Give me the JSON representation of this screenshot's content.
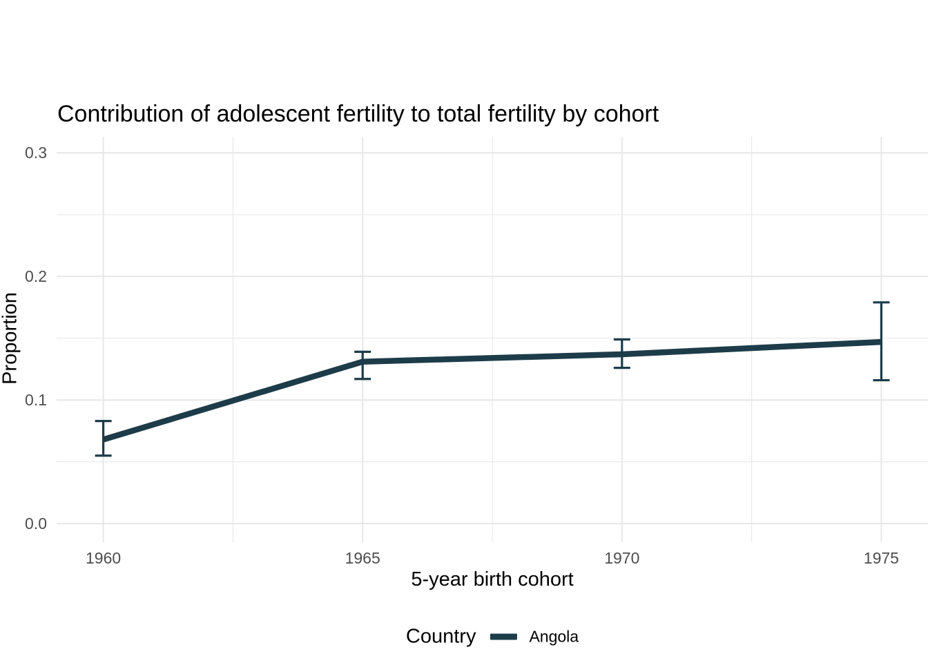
{
  "legend": {
    "title": "Country",
    "items": [
      {
        "label": "Angola",
        "color": "#1d3c49"
      }
    ]
  },
  "chart_data": {
    "type": "line",
    "title": "Contribution of adolescent fertility to total fertility by cohort",
    "xlabel": "5-year birth cohort",
    "ylabel": "Proportion",
    "x": [
      1960,
      1965,
      1970,
      1975
    ],
    "series": [
      {
        "name": "Angola",
        "color": "#1d3c49",
        "values": [
          0.068,
          0.131,
          0.137,
          0.147
        ],
        "ci_low": [
          0.055,
          0.117,
          0.126,
          0.116
        ],
        "ci_high": [
          0.083,
          0.139,
          0.149,
          0.179
        ]
      }
    ],
    "x_ticks": {
      "values": [
        1960,
        1965,
        1970,
        1975
      ],
      "labels": [
        "1960",
        "1965",
        "1970",
        "1975"
      ],
      "minor": [
        1962.5,
        1967.5,
        1972.5
      ]
    },
    "y_ticks": {
      "values": [
        0,
        0.1,
        0.2,
        0.3
      ],
      "labels": [
        "0.0",
        "0.1",
        "0.2",
        "0.3"
      ],
      "minor": [
        0.05,
        0.15,
        0.25
      ]
    },
    "xlim": [
      1959.1,
      1975.9
    ],
    "ylim": [
      -0.015,
      0.313
    ],
    "grid": true,
    "error_bars": true,
    "legend_position": "bottom",
    "colors": {
      "grid": "#e7e7e7",
      "tick_text": "#4d4d4d",
      "text": "#000000",
      "background": "#ffffff"
    }
  }
}
